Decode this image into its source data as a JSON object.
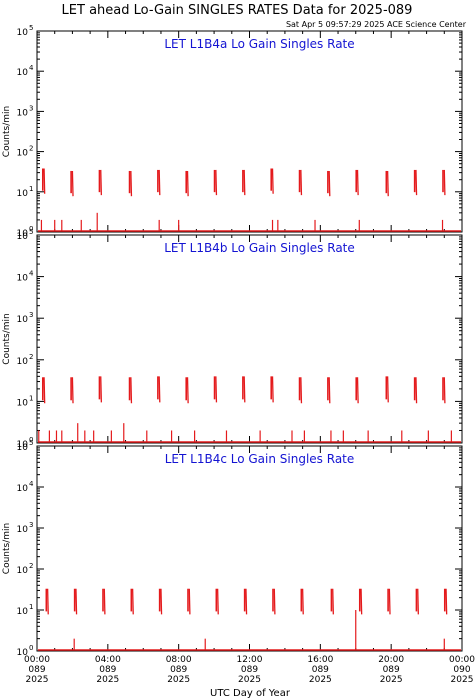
{
  "header": {
    "title": "LET ahead Lo-Gain SINGLES RATES Data for 2025-089",
    "timestamp": "Sat Apr  5 09:57:29 2025 ACE Science Center"
  },
  "colors": {
    "data": "#e41a1c",
    "panel_title": "#1414d2",
    "axes": "#000000"
  },
  "chart_data": [
    {
      "type": "line",
      "title": "LET L1B4a Lo Gain Singles Rate",
      "ylabel": "Counts/min",
      "yscale": "log",
      "ylim": [
        1,
        100000
      ],
      "xlim": [
        0,
        24
      ],
      "yticks": [
        1,
        10,
        100,
        1000,
        10000,
        100000
      ],
      "ytick_labels": [
        [
          "10",
          "0"
        ],
        [
          "10",
          "1"
        ],
        [
          "10",
          "2"
        ],
        [
          "10",
          "3"
        ],
        [
          "10",
          "4"
        ],
        [
          "10",
          "5"
        ]
      ],
      "bursts": [
        {
          "x": 0.4,
          "peak": 38
        },
        {
          "x": 2.0,
          "peak": 33
        },
        {
          "x": 3.6,
          "peak": 35
        },
        {
          "x": 5.3,
          "peak": 33
        },
        {
          "x": 6.9,
          "peak": 35
        },
        {
          "x": 8.5,
          "peak": 33
        },
        {
          "x": 10.1,
          "peak": 35
        },
        {
          "x": 11.7,
          "peak": 35
        },
        {
          "x": 13.3,
          "peak": 38
        },
        {
          "x": 14.9,
          "peak": 35
        },
        {
          "x": 16.5,
          "peak": 33
        },
        {
          "x": 18.1,
          "peak": 35
        },
        {
          "x": 19.8,
          "peak": 33
        },
        {
          "x": 21.4,
          "peak": 35
        },
        {
          "x": 23.0,
          "peak": 35
        }
      ],
      "spikes": [
        {
          "x": 0.25,
          "y": 2
        },
        {
          "x": 1.0,
          "y": 2
        },
        {
          "x": 1.4,
          "y": 2
        },
        {
          "x": 2.5,
          "y": 2
        },
        {
          "x": 3.4,
          "y": 3
        },
        {
          "x": 6.9,
          "y": 2
        },
        {
          "x": 8.0,
          "y": 2
        },
        {
          "x": 13.3,
          "y": 2
        },
        {
          "x": 13.6,
          "y": 2
        },
        {
          "x": 15.7,
          "y": 2
        },
        {
          "x": 18.2,
          "y": 2
        },
        {
          "x": 22.9,
          "y": 2
        }
      ]
    },
    {
      "type": "line",
      "title": "LET L1B4b Lo Gain Singles Rate",
      "ylabel": "Counts/min",
      "yscale": "log",
      "ylim": [
        1,
        100000
      ],
      "xlim": [
        0,
        24
      ],
      "yticks": [
        1,
        10,
        100,
        1000,
        10000,
        100000
      ],
      "ytick_labels": [
        [
          "10",
          "0"
        ],
        [
          "10",
          "1"
        ],
        [
          "10",
          "2"
        ],
        [
          "10",
          "3"
        ],
        [
          "10",
          "4"
        ],
        [
          "10",
          "5"
        ]
      ],
      "bursts": [
        {
          "x": 0.4,
          "peak": 38
        },
        {
          "x": 2.0,
          "peak": 38
        },
        {
          "x": 3.6,
          "peak": 40
        },
        {
          "x": 5.3,
          "peak": 38
        },
        {
          "x": 6.9,
          "peak": 40
        },
        {
          "x": 8.5,
          "peak": 38
        },
        {
          "x": 10.1,
          "peak": 40
        },
        {
          "x": 11.7,
          "peak": 40
        },
        {
          "x": 13.3,
          "peak": 40
        },
        {
          "x": 14.9,
          "peak": 38
        },
        {
          "x": 16.5,
          "peak": 38
        },
        {
          "x": 18.1,
          "peak": 38
        },
        {
          "x": 19.8,
          "peak": 40
        },
        {
          "x": 21.4,
          "peak": 38
        },
        {
          "x": 23.0,
          "peak": 38
        }
      ],
      "spikes": [
        {
          "x": 0.1,
          "y": 2
        },
        {
          "x": 0.7,
          "y": 2
        },
        {
          "x": 1.1,
          "y": 2
        },
        {
          "x": 1.4,
          "y": 2
        },
        {
          "x": 2.3,
          "y": 3
        },
        {
          "x": 2.7,
          "y": 2
        },
        {
          "x": 3.2,
          "y": 2
        },
        {
          "x": 4.2,
          "y": 2
        },
        {
          "x": 4.9,
          "y": 3
        },
        {
          "x": 6.2,
          "y": 2
        },
        {
          "x": 7.6,
          "y": 2
        },
        {
          "x": 8.9,
          "y": 2
        },
        {
          "x": 10.7,
          "y": 2
        },
        {
          "x": 12.6,
          "y": 2
        },
        {
          "x": 14.4,
          "y": 2
        },
        {
          "x": 15.1,
          "y": 2
        },
        {
          "x": 16.6,
          "y": 2
        },
        {
          "x": 17.3,
          "y": 2
        },
        {
          "x": 18.7,
          "y": 2
        },
        {
          "x": 20.6,
          "y": 2
        },
        {
          "x": 22.1,
          "y": 2
        },
        {
          "x": 23.4,
          "y": 2
        }
      ]
    },
    {
      "type": "line",
      "title": "LET L1B4c Lo Gain Singles Rate",
      "ylabel": "Counts/min",
      "yscale": "log",
      "ylim": [
        1,
        100000
      ],
      "xlim": [
        0,
        24
      ],
      "yticks": [
        1,
        10,
        100,
        1000,
        10000,
        100000
      ],
      "ytick_labels": [
        [
          "10",
          "0"
        ],
        [
          "10",
          "1"
        ],
        [
          "10",
          "2"
        ],
        [
          "10",
          "3"
        ],
        [
          "10",
          "4"
        ],
        [
          "10",
          "5"
        ]
      ],
      "bursts": [
        {
          "x": 0.6,
          "peak": 33
        },
        {
          "x": 2.2,
          "peak": 33
        },
        {
          "x": 3.8,
          "peak": 33
        },
        {
          "x": 5.4,
          "peak": 33
        },
        {
          "x": 7.0,
          "peak": 33
        },
        {
          "x": 8.6,
          "peak": 33
        },
        {
          "x": 10.2,
          "peak": 33
        },
        {
          "x": 11.8,
          "peak": 33
        },
        {
          "x": 13.4,
          "peak": 33
        },
        {
          "x": 15.0,
          "peak": 33
        },
        {
          "x": 16.7,
          "peak": 33
        },
        {
          "x": 18.3,
          "peak": 33
        },
        {
          "x": 19.9,
          "peak": 33
        },
        {
          "x": 21.5,
          "peak": 33
        },
        {
          "x": 23.1,
          "peak": 33
        }
      ],
      "spikes": [
        {
          "x": 2.1,
          "y": 2
        },
        {
          "x": 9.5,
          "y": 2
        },
        {
          "x": 18.0,
          "y": 10
        },
        {
          "x": 23.0,
          "y": 2
        }
      ]
    }
  ],
  "x_axis": {
    "label": "UTC Day of Year",
    "ticks": [
      {
        "x": 0,
        "time": "00:00",
        "doy": "089",
        "year": "2025"
      },
      {
        "x": 4,
        "time": "04:00",
        "doy": "089",
        "year": "2025"
      },
      {
        "x": 8,
        "time": "08:00",
        "doy": "089",
        "year": "2025"
      },
      {
        "x": 12,
        "time": "12:00",
        "doy": "089",
        "year": "2025"
      },
      {
        "x": 16,
        "time": "16:00",
        "doy": "089",
        "year": "2025"
      },
      {
        "x": 20,
        "time": "20:00",
        "doy": "089",
        "year": "2025"
      },
      {
        "x": 24,
        "time": "00:00",
        "doy": "090",
        "year": "2025"
      }
    ]
  }
}
